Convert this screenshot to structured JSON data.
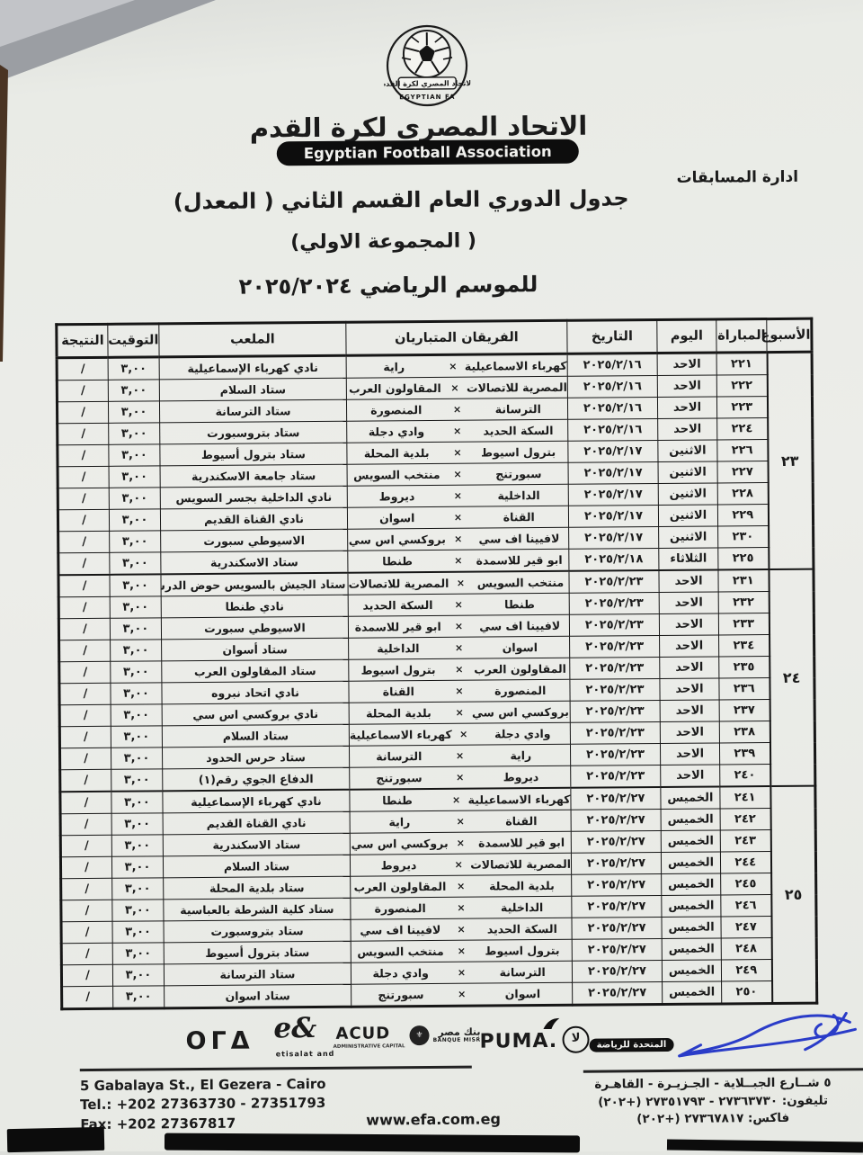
{
  "header": {
    "org_name_ar": "الاتحاد المصرى لكرة القدم",
    "org_name_en": "Egyptian Football Association",
    "logo_ar": "الاتحاد المصري لكرة القدم",
    "logo_en": "EGYPTIAN FA",
    "department": "ادارة المسابقات",
    "title_line1": "جدول الدوري العام القسم الثاني ( المعدل)",
    "title_line2": "( المجموعة الاولي)",
    "title_line3": "للموسم الرياضي ٢٠٢٥/٢٠٢٤"
  },
  "table": {
    "headers": [
      "الأسبوع",
      "المباراة",
      "اليوم",
      "التاريخ",
      "الفريقان المتباريان",
      "الملعب",
      "التوقيت",
      "النتيجة"
    ],
    "vs_symbol": "×",
    "groups": [
      {
        "week": "٢٣",
        "rows": [
          {
            "match": "٢٢١",
            "day": "الاحد",
            "date": "٢٠٢٥/٢/١٦",
            "home": "كهرباء الاسماعيلية",
            "away": "راية",
            "venue": "نادي كهرباء الإسماعيلية",
            "time": "٣,٠٠",
            "result": "/"
          },
          {
            "match": "٢٢٢",
            "day": "الاحد",
            "date": "٢٠٢٥/٢/١٦",
            "home": "المصرية للاتصالات",
            "away": "المقاولون العرب",
            "venue": "ستاد السلام",
            "time": "٣,٠٠",
            "result": "/"
          },
          {
            "match": "٢٢٣",
            "day": "الاحد",
            "date": "٢٠٢٥/٢/١٦",
            "home": "الترسانة",
            "away": "المنصورة",
            "venue": "ستاد الترسانة",
            "time": "٣,٠٠",
            "result": "/"
          },
          {
            "match": "٢٢٤",
            "day": "الاحد",
            "date": "٢٠٢٥/٢/١٦",
            "home": "السكة الحديد",
            "away": "وادي دجلة",
            "venue": "ستاد بتروسبورت",
            "time": "٣,٠٠",
            "result": "/"
          },
          {
            "match": "٢٢٦",
            "day": "الاثنين",
            "date": "٢٠٢٥/٢/١٧",
            "home": "بترول اسيوط",
            "away": "بلدية المحلة",
            "venue": "ستاد بترول أسيوط",
            "time": "٣,٠٠",
            "result": "/"
          },
          {
            "match": "٢٢٧",
            "day": "الاثنين",
            "date": "٢٠٢٥/٢/١٧",
            "home": "سبورتنج",
            "away": "منتخب السويس",
            "venue": "ستاد جامعة الاسكندرية",
            "time": "٣,٠٠",
            "result": "/"
          },
          {
            "match": "٢٢٨",
            "day": "الاثنين",
            "date": "٢٠٢٥/٢/١٧",
            "home": "الداخلية",
            "away": "ديروط",
            "venue": "نادي الداخلية بجسر السويس",
            "time": "٣,٠٠",
            "result": "/"
          },
          {
            "match": "٢٢٩",
            "day": "الاثنين",
            "date": "٢٠٢٥/٢/١٧",
            "home": "القناة",
            "away": "اسوان",
            "venue": "نادي القناة القديم",
            "time": "٣,٠٠",
            "result": "/"
          },
          {
            "match": "٢٣٠",
            "day": "الاثنين",
            "date": "٢٠٢٥/٢/١٧",
            "home": "لافيينا اف سي",
            "away": "بروكسي اس سي",
            "venue": "الاسيوطي سبورت",
            "time": "٣,٠٠",
            "result": "/"
          },
          {
            "match": "٢٢٥",
            "day": "الثلاثاء",
            "date": "٢٠٢٥/٢/١٨",
            "home": "ابو قير للاسمدة",
            "away": "طنطا",
            "venue": "ستاد الاسكندرية",
            "time": "٣,٠٠",
            "result": "/"
          }
        ]
      },
      {
        "week": "٢٤",
        "rows": [
          {
            "match": "٢٣١",
            "day": "الاحد",
            "date": "٢٠٢٥/٢/٢٣",
            "home": "منتخب السويس",
            "away": "المصرية للاتصالات",
            "venue": "ستاد الجيش بالسويس حوض الدرس",
            "time": "٣,٠٠",
            "result": "/"
          },
          {
            "match": "٢٣٢",
            "day": "الاحد",
            "date": "٢٠٢٥/٢/٢٣",
            "home": "طنطا",
            "away": "السكة الحديد",
            "venue": "نادي طنطا",
            "time": "٣,٠٠",
            "result": "/"
          },
          {
            "match": "٢٣٣",
            "day": "الاحد",
            "date": "٢٠٢٥/٢/٢٣",
            "home": "لافيينا اف سي",
            "away": "ابو قير للاسمدة",
            "venue": "الاسيوطي سبورت",
            "time": "٣,٠٠",
            "result": "/"
          },
          {
            "match": "٢٣٤",
            "day": "الاحد",
            "date": "٢٠٢٥/٢/٢٣",
            "home": "اسوان",
            "away": "الداخلية",
            "venue": "ستاد أسوان",
            "time": "٣,٠٠",
            "result": "/"
          },
          {
            "match": "٢٣٥",
            "day": "الاحد",
            "date": "٢٠٢٥/٢/٢٣",
            "home": "المقاولون العرب",
            "away": "بترول اسيوط",
            "venue": "ستاد المقاولون العرب",
            "time": "٣,٠٠",
            "result": "/"
          },
          {
            "match": "٢٣٦",
            "day": "الاحد",
            "date": "٢٠٢٥/٢/٢٣",
            "home": "المنصورة",
            "away": "القناة",
            "venue": "نادي اتحاد نبروه",
            "time": "٣,٠٠",
            "result": "/"
          },
          {
            "match": "٢٣٧",
            "day": "الاحد",
            "date": "٢٠٢٥/٢/٢٣",
            "home": "بروكسي اس سي",
            "away": "بلدية المحلة",
            "venue": "نادي بروكسي اس سي",
            "time": "٣,٠٠",
            "result": "/"
          },
          {
            "match": "٢٣٨",
            "day": "الاحد",
            "date": "٢٠٢٥/٢/٢٣",
            "home": "وادي دجلة",
            "away": "كهرباء الاسماعيلية",
            "venue": "ستاد السلام",
            "time": "٣,٠٠",
            "result": "/"
          },
          {
            "match": "٢٣٩",
            "day": "الاحد",
            "date": "٢٠٢٥/٢/٢٣",
            "home": "راية",
            "away": "الترسانة",
            "venue": "ستاد حرس الحدود",
            "time": "٣,٠٠",
            "result": "/"
          },
          {
            "match": "٢٤٠",
            "day": "الاحد",
            "date": "٢٠٢٥/٢/٢٣",
            "home": "ديروط",
            "away": "سبورتنج",
            "venue": "الدفاع الجوي رقم(١)",
            "time": "٣,٠٠",
            "result": "/"
          }
        ]
      },
      {
        "week": "٢٥",
        "rows": [
          {
            "match": "٢٤١",
            "day": "الخميس",
            "date": "٢٠٢٥/٢/٢٧",
            "home": "كهرباء الاسماعيلية",
            "away": "طنطا",
            "venue": "نادي كهرباء الإسماعيلية",
            "time": "٣,٠٠",
            "result": "/"
          },
          {
            "match": "٢٤٢",
            "day": "الخميس",
            "date": "٢٠٢٥/٢/٢٧",
            "home": "القناة",
            "away": "راية",
            "venue": "نادي القناة القديم",
            "time": "٣,٠٠",
            "result": "/"
          },
          {
            "match": "٢٤٣",
            "day": "الخميس",
            "date": "٢٠٢٥/٢/٢٧",
            "home": "ابو قير للاسمدة",
            "away": "بروكسي اس سي",
            "venue": "ستاد الاسكندرية",
            "time": "٣,٠٠",
            "result": "/"
          },
          {
            "match": "٢٤٤",
            "day": "الخميس",
            "date": "٢٠٢٥/٢/٢٧",
            "home": "المصرية للاتصالات",
            "away": "ديروط",
            "venue": "ستاد السلام",
            "time": "٣,٠٠",
            "result": "/"
          },
          {
            "match": "٢٤٥",
            "day": "الخميس",
            "date": "٢٠٢٥/٢/٢٧",
            "home": "بلدية المحلة",
            "away": "المقاولون العرب",
            "venue": "ستاد بلدية المحلة",
            "time": "٣,٠٠",
            "result": "/"
          },
          {
            "match": "٢٤٦",
            "day": "الخميس",
            "date": "٢٠٢٥/٢/٢٧",
            "home": "الداخلية",
            "away": "المنصورة",
            "venue": "ستاد كلية الشرطة بالعباسية",
            "time": "٣,٠٠",
            "result": "/"
          },
          {
            "match": "٢٤٧",
            "day": "الخميس",
            "date": "٢٠٢٥/٢/٢٧",
            "home": "السكة الحديد",
            "away": "لافيينا اف سي",
            "venue": "ستاد بتروسبورت",
            "time": "٣,٠٠",
            "result": "/"
          },
          {
            "match": "٢٤٨",
            "day": "الخميس",
            "date": "٢٠٢٥/٢/٢٧",
            "home": "بترول اسيوط",
            "away": "منتخب السويس",
            "venue": "ستاد بترول أسيوط",
            "time": "٣,٠٠",
            "result": "/"
          },
          {
            "match": "٢٤٩",
            "day": "الخميس",
            "date": "٢٠٢٥/٢/٢٧",
            "home": "الترسانة",
            "away": "وادي دجلة",
            "venue": "ستاد الترسانة",
            "time": "٣,٠٠",
            "result": "/"
          },
          {
            "match": "٢٥٠",
            "day": "الخميس",
            "date": "٢٠٢٥/٢/٢٧",
            "home": "اسوان",
            "away": "سبورتنج",
            "venue": "ستاد اسوان",
            "time": "٣,٠٠",
            "result": "/"
          }
        ]
      }
    ]
  },
  "footer": {
    "sponsors": {
      "ora": "OΓΔ",
      "etisalat_mark": "e&",
      "etisalat_sub": "etisalat and",
      "acud": "ACUD",
      "acud_sub": "ADMINISTRATIVE CAPITAL",
      "banque_misr_ar": "بنك مصر",
      "banque_misr_en": "BANQUE MISR",
      "puma": "PUMA.",
      "sports_sector_glyph": "لا",
      "united_sports": "المتحدة للرياضة"
    },
    "address_en": [
      "5 Gabalaya St., El Gezera - Cairo",
      "Tel.: +202 27363730 - 27351793",
      "Fax: +202 27367817"
    ],
    "address_ar": [
      "٥ شــارع الجبــلاية - الجـزيـرة - القاهـرة",
      "تليفون: ٢٧٣٦٣٧٣٠ - ٢٧٣٥١٧٩٣ (+٢٠٢)",
      "فاكس: ٢٧٣٦٧٨١٧ (+٢٠٢)"
    ],
    "website": "www.efa.com.eg"
  },
  "colors": {
    "ink": "#1b1b1b",
    "paper": "#ecede9",
    "signature_blue": "#2a3cc8",
    "banner_black": "#0d0d0d"
  }
}
